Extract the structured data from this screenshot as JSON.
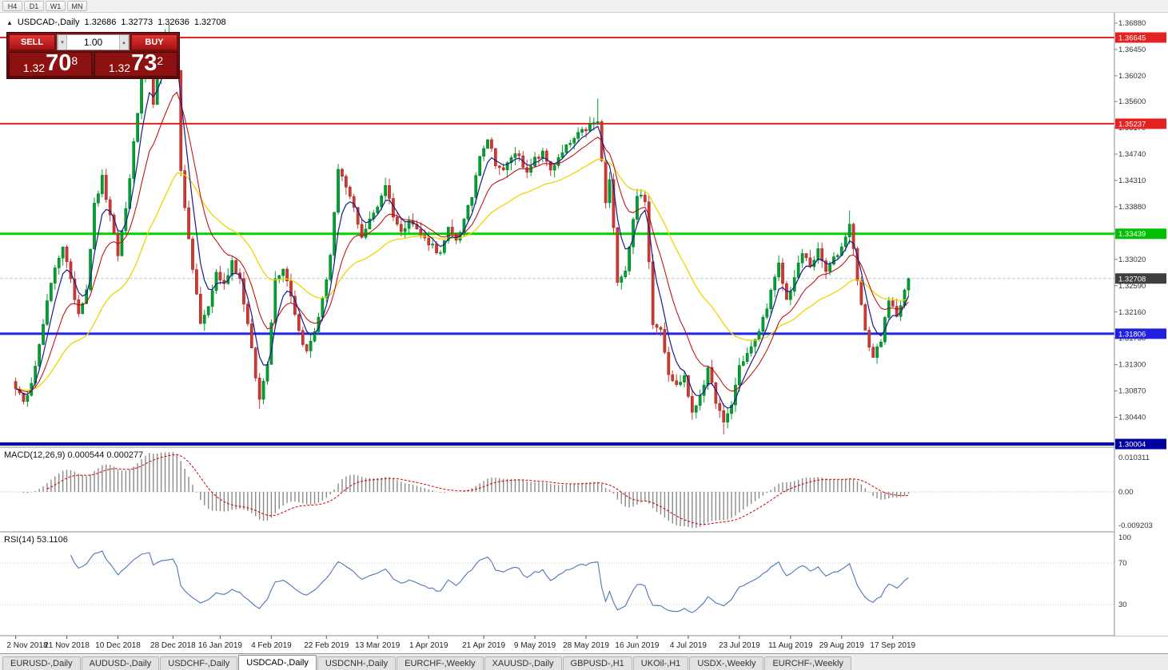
{
  "colors": {
    "bull": "#00A12E",
    "bull_border": "#00722A",
    "bear": "#CC3B33",
    "bear_border": "#99241E",
    "macd_hist": "#8A8A8A",
    "macd_signal": "#CC0000",
    "rsi_line": "#4F76B8",
    "scale_text": "#333333",
    "date_text": "#222222"
  },
  "toolbar": {
    "timeframes": [
      "H4",
      "D1",
      "W1",
      "MN"
    ]
  },
  "chart_header": {
    "collapse_icon": "▲",
    "title": "USDCAD-,Daily",
    "open": "1.32686",
    "high": "1.32773",
    "low": "1.32636",
    "close": "1.32708"
  },
  "trade_panel": {
    "sell_label": "SELL",
    "buy_label": "BUY",
    "volume": "1.00",
    "volume_down_icon": "▾",
    "volume_up_icon": "▴",
    "sell_price": {
      "prefix": "1.32",
      "big": "70",
      "sup": "8"
    },
    "buy_price": {
      "prefix": "1.32",
      "big": "73",
      "sup": "2"
    }
  },
  "price_scale": {
    "labels": [
      "1.36880",
      "1.36450",
      "1.36020",
      "1.35600",
      "1.35170",
      "1.34740",
      "1.34310",
      "1.33880",
      "1.33450",
      "1.33020",
      "1.32590",
      "1.32160",
      "1.31730",
      "1.31300",
      "1.30870",
      "1.30440"
    ],
    "tags": [
      {
        "text": "1.36645",
        "price": 1.36645,
        "bg": "#E32222"
      },
      {
        "text": "1.35237",
        "price": 1.35237,
        "bg": "#E32222"
      },
      {
        "text": "1.33439",
        "price": 1.33439,
        "bg": "#00C000"
      },
      {
        "text": "1.32708",
        "price": 1.32708,
        "bg": "#3F3F3F"
      },
      {
        "text": "1.31806",
        "price": 1.31806,
        "bg": "#2020DD"
      },
      {
        "text": "1.30004",
        "price": 1.30004,
        "bg": "#0000A0"
      }
    ]
  },
  "hlines": [
    {
      "price": 1.36645,
      "color": "#E32222",
      "w": 2
    },
    {
      "price": 1.35237,
      "color": "#E32222",
      "w": 2
    },
    {
      "price": 1.33439,
      "color": "#00D300",
      "w": 3
    },
    {
      "price": 1.31806,
      "color": "#2222E8",
      "w": 3
    },
    {
      "price": 1.30004,
      "color": "#0000A0",
      "w": 4
    }
  ],
  "indicators": {
    "macd": {
      "label": "MACD(12,26,9) 0.000544 0.000277",
      "scale_max": "0.010311",
      "scale_zero": "0.00",
      "scale_min": "-0.009203",
      "current_values": [
        0.000544,
        0.000277
      ]
    },
    "rsi": {
      "label": "RSI(14) 53.1106",
      "current_value": 53.1106,
      "levels": [
        "100",
        "70",
        "30"
      ]
    }
  },
  "date_axis": [
    [
      0,
      "2 Nov 2018"
    ],
    [
      13,
      "21 Nov 2018"
    ],
    [
      26,
      "10 Dec 2018"
    ],
    [
      40,
      "28 Dec 2018"
    ],
    [
      52,
      "16 Jan 2019"
    ],
    [
      65,
      "4 Feb 2019"
    ],
    [
      79,
      "22 Feb 2019"
    ],
    [
      92,
      "13 Mar 2019"
    ],
    [
      105,
      "1 Apr 2019"
    ],
    [
      119,
      "21 Apr 2019"
    ],
    [
      132,
      "9 May 2019"
    ],
    [
      145,
      "28 May 2019"
    ],
    [
      158,
      "16 Jun 2019"
    ],
    [
      171,
      "4 Jul 2019"
    ],
    [
      184,
      "23 Jul 2019"
    ],
    [
      197,
      "11 Aug 2019"
    ],
    [
      210,
      "29 Aug 2019"
    ],
    [
      223,
      "17 Sep 2019"
    ]
  ],
  "tabs": [
    {
      "label": "EURUSD-,Daily"
    },
    {
      "label": "AUDUSD-,Daily"
    },
    {
      "label": "USDCHF-,Daily"
    },
    {
      "label": "USDCAD-,Daily"
    },
    {
      "label": "USDCNH-,Daily"
    },
    {
      "label": "EURCHF-,Weekly"
    },
    {
      "label": "XAUUSD-,Daily"
    },
    {
      "label": "GBPUSD-,H1"
    },
    {
      "label": "UKOil-,H1"
    },
    {
      "label": "USDX-,Weekly"
    },
    {
      "label": "EURCHF-,Weekly"
    }
  ],
  "tabs_active_index": 3,
  "chart_data": {
    "type": "candlestick",
    "symbol": "USDCAD",
    "timeframe": "Daily",
    "bar_count": 228,
    "last_close": 1.32708,
    "price_range_visible": [
      1.2995,
      1.3705
    ],
    "waypoints": [
      [
        0,
        1.3095
      ],
      [
        2,
        1.3065
      ],
      [
        4,
        1.3105
      ],
      [
        6,
        1.316
      ],
      [
        8,
        1.323
      ],
      [
        10,
        1.329
      ],
      [
        12,
        1.3325
      ],
      [
        14,
        1.3265
      ],
      [
        16,
        1.3215
      ],
      [
        18,
        1.3255
      ],
      [
        20,
        1.339
      ],
      [
        22,
        1.3435
      ],
      [
        24,
        1.337
      ],
      [
        26,
        1.331
      ],
      [
        28,
        1.3385
      ],
      [
        30,
        1.349
      ],
      [
        32,
        1.3595
      ],
      [
        34,
        1.363
      ],
      [
        35,
        1.356
      ],
      [
        37,
        1.3625
      ],
      [
        39,
        1.365
      ],
      [
        40,
        1.3655
      ],
      [
        41,
        1.361
      ],
      [
        42,
        1.345
      ],
      [
        44,
        1.333
      ],
      [
        46,
        1.3245
      ],
      [
        47,
        1.3195
      ],
      [
        49,
        1.3225
      ],
      [
        51,
        1.328
      ],
      [
        53,
        1.326
      ],
      [
        55,
        1.33
      ],
      [
        57,
        1.327
      ],
      [
        59,
        1.3195
      ],
      [
        61,
        1.311
      ],
      [
        62,
        1.3072
      ],
      [
        64,
        1.3135
      ],
      [
        66,
        1.327
      ],
      [
        68,
        1.329
      ],
      [
        70,
        1.3245
      ],
      [
        72,
        1.3185
      ],
      [
        74,
        1.315
      ],
      [
        76,
        1.3185
      ],
      [
        78,
        1.3235
      ],
      [
        80,
        1.331
      ],
      [
        82,
        1.3445
      ],
      [
        84,
        1.342
      ],
      [
        86,
        1.3385
      ],
      [
        88,
        1.334
      ],
      [
        90,
        1.3365
      ],
      [
        92,
        1.339
      ],
      [
        94,
        1.3425
      ],
      [
        96,
        1.3375
      ],
      [
        98,
        1.3345
      ],
      [
        100,
        1.337
      ],
      [
        102,
        1.335
      ],
      [
        104,
        1.3335
      ],
      [
        106,
        1.3325
      ],
      [
        108,
        1.331
      ],
      [
        110,
        1.335
      ],
      [
        112,
        1.3335
      ],
      [
        114,
        1.3365
      ],
      [
        116,
        1.3405
      ],
      [
        118,
        1.3475
      ],
      [
        120,
        1.35
      ],
      [
        122,
        1.346
      ],
      [
        124,
        1.3445
      ],
      [
        126,
        1.347
      ],
      [
        128,
        1.3475
      ],
      [
        130,
        1.344
      ],
      [
        132,
        1.3465
      ],
      [
        134,
        1.3475
      ],
      [
        136,
        1.345
      ],
      [
        138,
        1.3465
      ],
      [
        140,
        1.3485
      ],
      [
        143,
        1.3505
      ],
      [
        146,
        1.352
      ],
      [
        148,
        1.3527
      ],
      [
        150,
        1.3395
      ],
      [
        151,
        1.343
      ],
      [
        153,
        1.327
      ],
      [
        155,
        1.3285
      ],
      [
        157,
        1.3365
      ],
      [
        158,
        1.341
      ],
      [
        160,
        1.3395
      ],
      [
        162,
        1.32
      ],
      [
        164,
        1.319
      ],
      [
        166,
        1.3118
      ],
      [
        168,
        1.3095
      ],
      [
        170,
        1.3112
      ],
      [
        172,
        1.3048
      ],
      [
        174,
        1.3082
      ],
      [
        176,
        1.312
      ],
      [
        178,
        1.3072
      ],
      [
        180,
        1.3032
      ],
      [
        182,
        1.3065
      ],
      [
        184,
        1.3128
      ],
      [
        186,
        1.3148
      ],
      [
        188,
        1.3168
      ],
      [
        190,
        1.3205
      ],
      [
        192,
        1.3248
      ],
      [
        194,
        1.3292
      ],
      [
        196,
        1.3235
      ],
      [
        198,
        1.3272
      ],
      [
        200,
        1.3312
      ],
      [
        202,
        1.3292
      ],
      [
        204,
        1.3315
      ],
      [
        206,
        1.3282
      ],
      [
        208,
        1.3302
      ],
      [
        210,
        1.3322
      ],
      [
        212,
        1.3362
      ],
      [
        214,
        1.3272
      ],
      [
        216,
        1.3182
      ],
      [
        218,
        1.3142
      ],
      [
        220,
        1.3172
      ],
      [
        222,
        1.3232
      ],
      [
        224,
        1.3212
      ],
      [
        226,
        1.3252
      ],
      [
        227,
        1.32708
      ]
    ],
    "wick_overrides": {
      "36": {
        "h": 1.3668
      },
      "38": {
        "h": 1.3678
      },
      "39": {
        "h": 1.3686
      },
      "148": {
        "h": 1.3565
      },
      "212": {
        "h": 1.3382
      },
      "62": {
        "l": 1.3058
      },
      "166": {
        "l": 1.3102
      },
      "180": {
        "l": 1.3016
      }
    },
    "moving_averages": [
      {
        "period": 34,
        "color": "#EFD400",
        "width": 1.3
      },
      {
        "period": 13,
        "color": "#C00000",
        "width": 1
      },
      {
        "period": 5,
        "color": "#1A1A8C",
        "width": 1.2
      }
    ]
  }
}
